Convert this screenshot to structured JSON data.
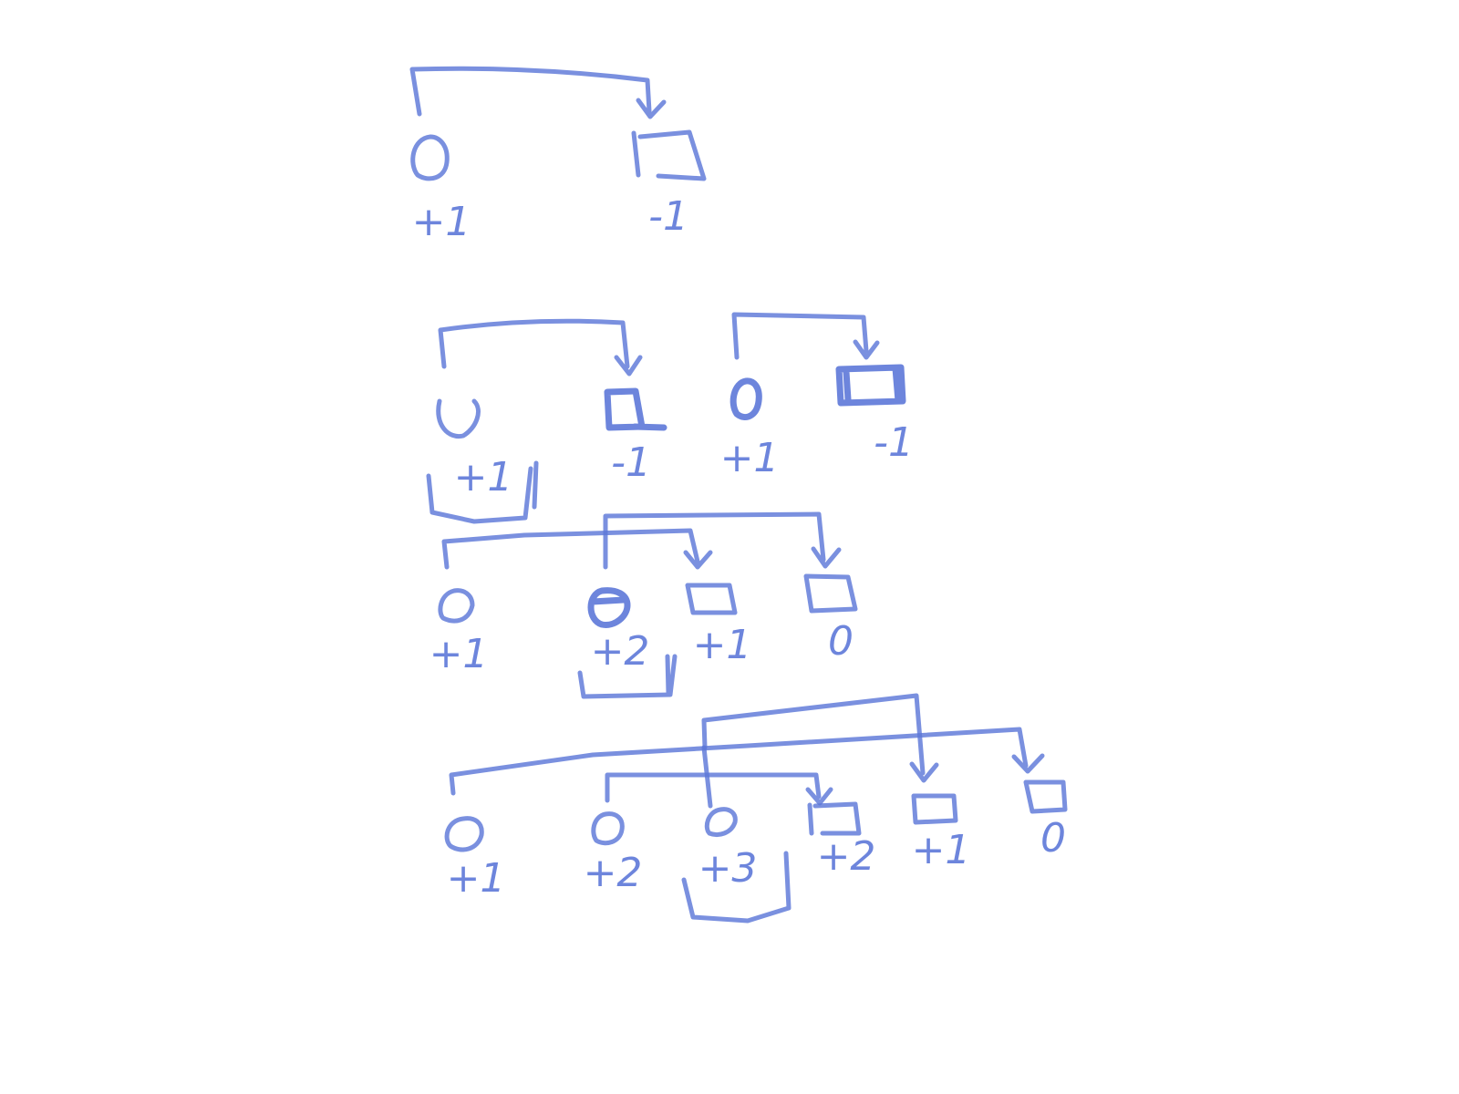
{
  "ink_color": "#5d78d8",
  "rows": [
    {
      "nodes": [
        {
          "shape": "circle",
          "label": "+1"
        },
        {
          "shape": "square",
          "label": "-1"
        }
      ]
    },
    {
      "nodes": [
        {
          "shape": "circle",
          "label": "+1"
        },
        {
          "shape": "square",
          "label": "-1"
        },
        {
          "shape": "circle",
          "label": "+1"
        },
        {
          "shape": "square",
          "label": "-1"
        }
      ]
    },
    {
      "nodes": [
        {
          "shape": "circle",
          "label": "+1"
        },
        {
          "shape": "circle",
          "label": "+2"
        },
        {
          "shape": "square",
          "label": "+1"
        },
        {
          "shape": "square",
          "label": "0"
        }
      ]
    },
    {
      "nodes": [
        {
          "shape": "circle",
          "label": "+1"
        },
        {
          "shape": "circle",
          "label": "+2"
        },
        {
          "shape": "circle",
          "label": "+3"
        },
        {
          "shape": "square",
          "label": "+2"
        },
        {
          "shape": "square",
          "label": "+1"
        },
        {
          "shape": "square",
          "label": "0"
        }
      ]
    }
  ]
}
